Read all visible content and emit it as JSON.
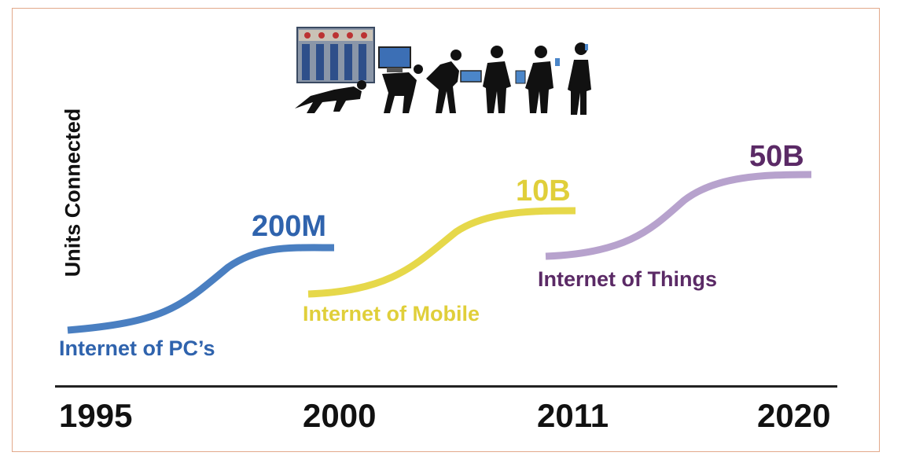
{
  "ylabel": "Units Connected",
  "colors": {
    "pc": "#4a7fc1",
    "mobile": "#e6d84a",
    "things": "#b7a2cd",
    "things_text": "#5b2a66",
    "axis": "#222222"
  },
  "eras": [
    {
      "label": "Internet of PC’s",
      "value": "200M"
    },
    {
      "label": "Internet of Mobile",
      "value": "10B"
    },
    {
      "label": "Internet of Things",
      "value": "50B"
    }
  ],
  "years": [
    "1995",
    "2000",
    "2011",
    "2020"
  ],
  "illustration": {
    "icon": "evolution-silhouettes-icon"
  }
}
